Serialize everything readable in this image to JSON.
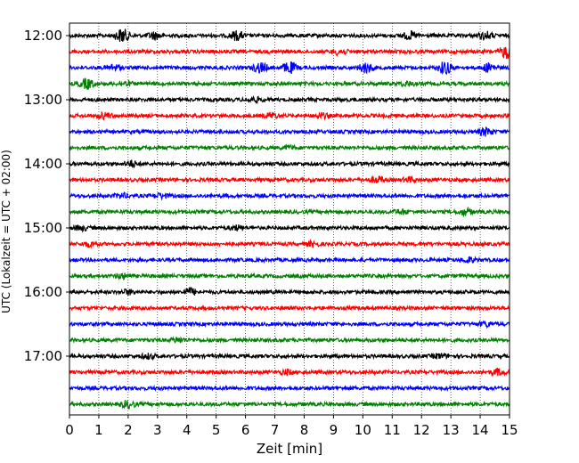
{
  "chart_data": {
    "type": "line",
    "subtype": "helicorder",
    "xlabel": "Zeit  [min]",
    "ylabel": "UTC (Lokalzeit = UTC + 02:00)",
    "xlim": [
      0,
      15
    ],
    "x_ticks": [
      "0",
      "1",
      "2",
      "3",
      "4",
      "5",
      "6",
      "7",
      "8",
      "9",
      "10",
      "11",
      "12",
      "13",
      "14",
      "15"
    ],
    "y_tick_labels": [
      "12:00",
      "13:00",
      "14:00",
      "15:00",
      "16:00",
      "17:00"
    ],
    "row_interval_minutes": 15,
    "row_start_times": [
      "12:00",
      "12:15",
      "12:30",
      "12:45",
      "13:00",
      "13:15",
      "13:30",
      "13:45",
      "14:00",
      "14:15",
      "14:30",
      "14:45",
      "15:00",
      "15:15",
      "15:30",
      "15:45",
      "16:00",
      "16:15",
      "16:30",
      "16:45",
      "17:00",
      "17:15",
      "17:30",
      "17:45"
    ],
    "trace_colors": [
      "#000000",
      "#ff0000",
      "#0000ff",
      "#008000"
    ],
    "vertical_gridlines": "dotted, every 1 min",
    "rows": 24,
    "series": [
      {
        "values": [
          {
            "t": 1.8,
            "amp": 1.0
          },
          {
            "t": 2.9,
            "amp": 0.5
          },
          {
            "t": 5.7,
            "amp": 0.6
          },
          {
            "t": 11.6,
            "amp": 0.5
          },
          {
            "t": 14.2,
            "amp": 0.5
          }
        ]
      },
      {
        "values": [
          {
            "t": 9.2,
            "amp": 0.4
          },
          {
            "t": 14.9,
            "amp": 0.9
          }
        ]
      },
      {
        "values": [
          {
            "t": 1.5,
            "amp": 0.4
          },
          {
            "t": 6.5,
            "amp": 0.7
          },
          {
            "t": 7.5,
            "amp": 0.8
          },
          {
            "t": 10.1,
            "amp": 0.7
          },
          {
            "t": 12.8,
            "amp": 0.9
          },
          {
            "t": 14.3,
            "amp": 0.6
          }
        ]
      },
      {
        "values": [
          {
            "t": 0.6,
            "amp": 0.7
          },
          {
            "t": 1.9,
            "amp": 0.3
          },
          {
            "t": 11.5,
            "amp": 0.3
          }
        ]
      },
      {
        "values": [
          {
            "t": 6.3,
            "amp": 0.3
          }
        ]
      },
      {
        "values": [
          {
            "t": 1.2,
            "amp": 0.4
          },
          {
            "t": 6.9,
            "amp": 0.4
          },
          {
            "t": 8.6,
            "amp": 0.3
          }
        ]
      },
      {
        "values": [
          {
            "t": 14.2,
            "amp": 0.5
          }
        ]
      },
      {
        "values": [
          {
            "t": 7.5,
            "amp": 0.2
          }
        ]
      },
      {
        "values": [
          {
            "t": 2.1,
            "amp": 0.4
          }
        ]
      },
      {
        "values": [
          {
            "t": 10.5,
            "amp": 0.4
          },
          {
            "t": 11.6,
            "amp": 0.3
          }
        ]
      },
      {
        "values": [
          {
            "t": 1.8,
            "amp": 0.3
          },
          {
            "t": 3.1,
            "amp": 0.3
          }
        ]
      },
      {
        "values": [
          {
            "t": 11.3,
            "amp": 0.3
          },
          {
            "t": 13.5,
            "amp": 0.4
          }
        ]
      },
      {
        "values": [
          {
            "t": 0.4,
            "amp": 0.3
          },
          {
            "t": 5.7,
            "amp": 0.3
          }
        ]
      },
      {
        "values": [
          {
            "t": 0.7,
            "amp": 0.3
          },
          {
            "t": 8.3,
            "amp": 0.3
          }
        ]
      },
      {
        "values": [
          {
            "t": 13.6,
            "amp": 0.3
          }
        ]
      },
      {
        "values": [
          {
            "t": 1.8,
            "amp": 0.3
          }
        ]
      },
      {
        "values": [
          {
            "t": 4.1,
            "amp": 0.5
          },
          {
            "t": 2.0,
            "amp": 0.3
          }
        ]
      },
      {
        "values": []
      },
      {
        "values": [
          {
            "t": 14.2,
            "amp": 0.3
          }
        ]
      },
      {
        "values": [
          {
            "t": 3.7,
            "amp": 0.3
          }
        ]
      },
      {
        "values": [
          {
            "t": 2.7,
            "amp": 0.3
          },
          {
            "t": 12.6,
            "amp": 0.3
          }
        ]
      },
      {
        "values": [
          {
            "t": 7.4,
            "amp": 0.3
          },
          {
            "t": 14.6,
            "amp": 0.4
          }
        ]
      },
      {
        "values": []
      },
      {
        "values": [
          {
            "t": 2.0,
            "amp": 0.5
          }
        ]
      }
    ]
  }
}
